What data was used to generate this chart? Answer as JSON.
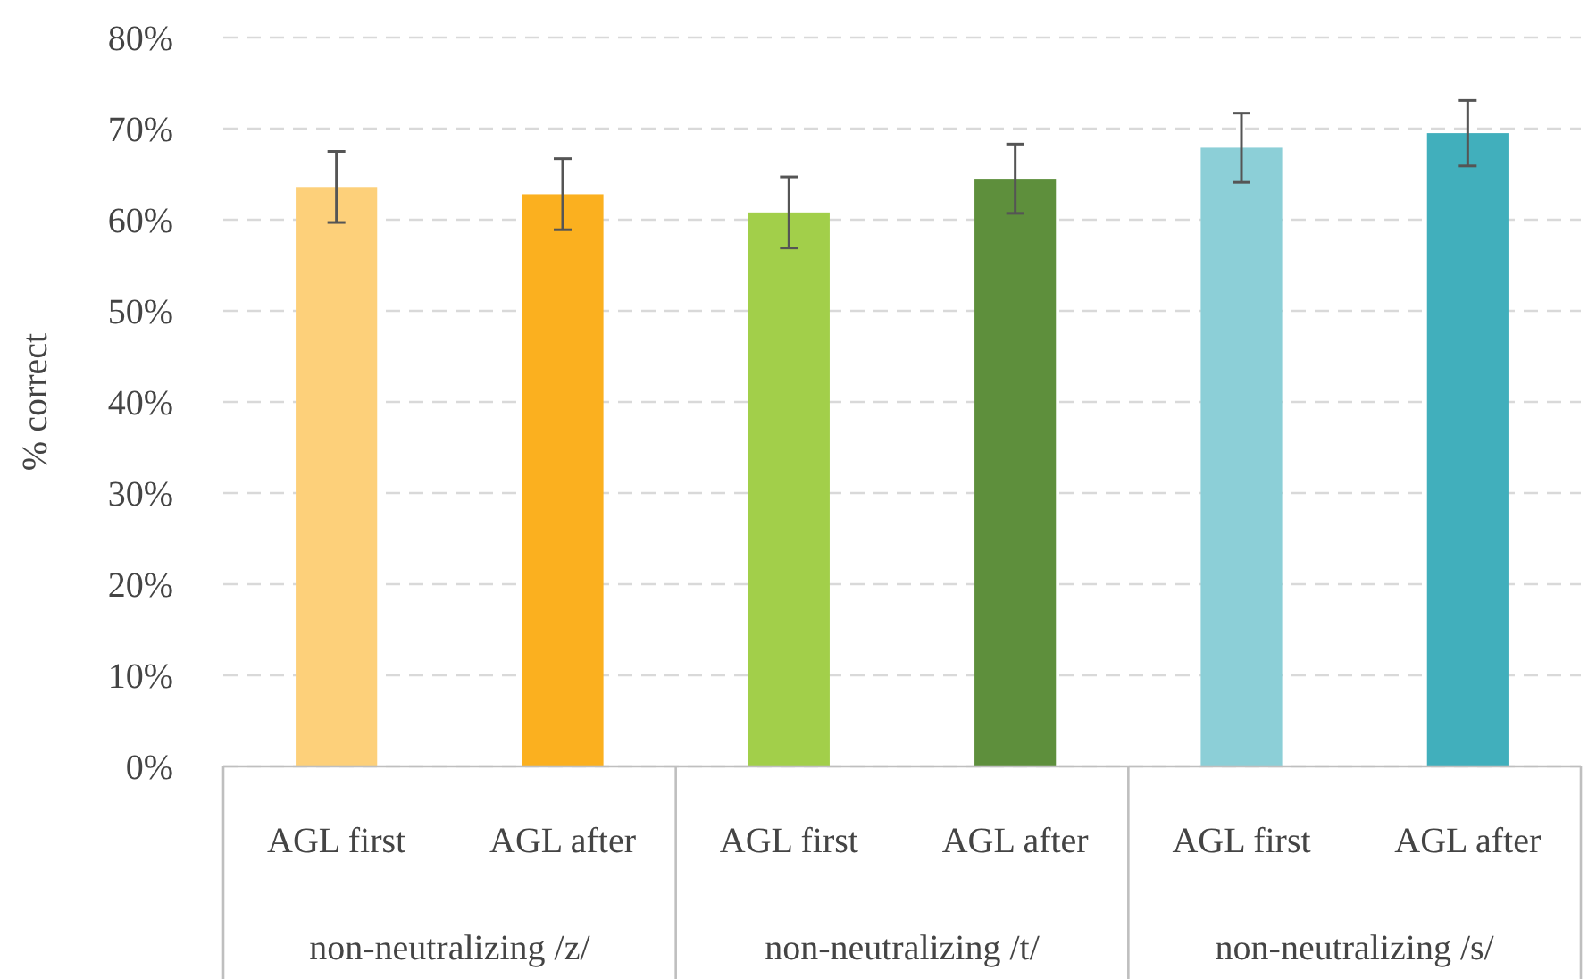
{
  "chart_data": {
    "type": "bar",
    "ylabel": "% correct",
    "categories": [
      "AGL first",
      "AGL after",
      "AGL first",
      "AGL after",
      "AGL first",
      "AGL after"
    ],
    "values": [
      63.6,
      62.8,
      60.8,
      64.5,
      67.9,
      69.5
    ],
    "errors": [
      3.9,
      3.9,
      3.9,
      3.8,
      3.8,
      3.6
    ],
    "colors": [
      "#fdd07a",
      "#fbb01f",
      "#a2cf4a",
      "#5e8f3c",
      "#8ccfd7",
      "#41afbc"
    ],
    "annotations": [
      "non-neutralizing /z/",
      "non-neutralizing /t/",
      "non-neutralizing /s/"
    ],
    "ylim": [
      0,
      80
    ],
    "yticks": [
      {
        "value": 0,
        "label": "0%"
      },
      {
        "value": 10,
        "label": "10%"
      },
      {
        "value": 20,
        "label": "20%"
      },
      {
        "value": 30,
        "label": "30%"
      },
      {
        "value": 40,
        "label": "40%"
      },
      {
        "value": 50,
        "label": "50%"
      },
      {
        "value": 60,
        "label": "60%"
      },
      {
        "value": 70,
        "label": "70%"
      },
      {
        "value": 80,
        "label": "80%"
      }
    ],
    "grid": "y"
  }
}
